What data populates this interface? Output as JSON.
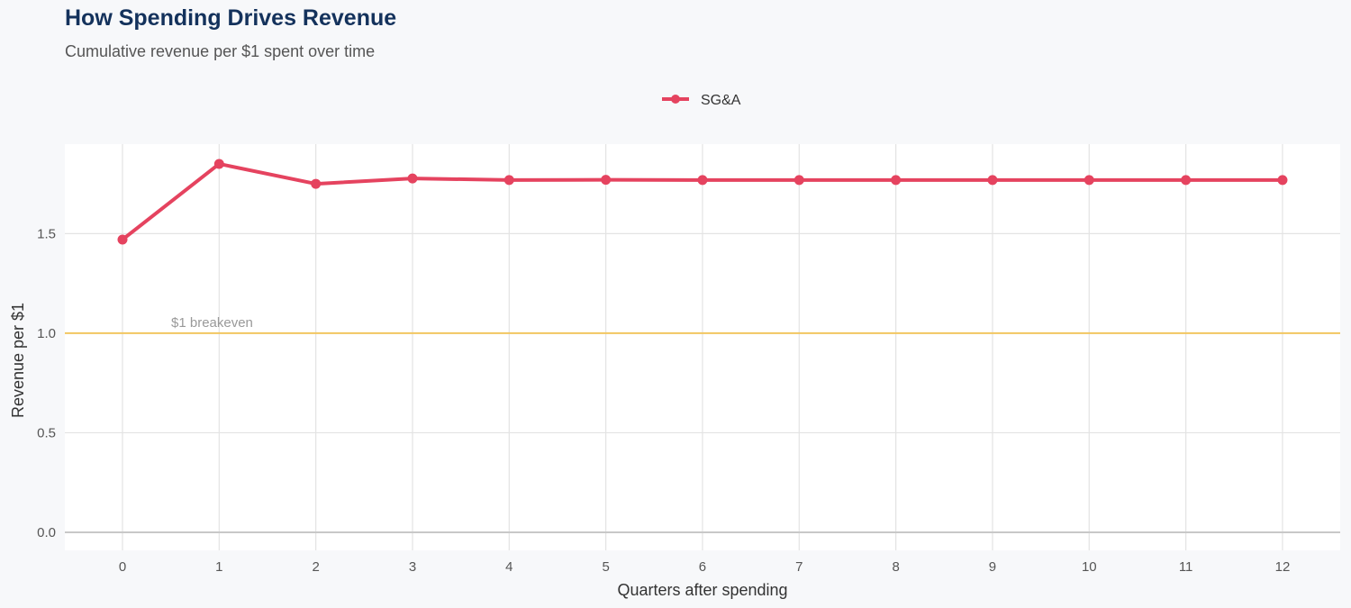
{
  "title": "How Spending Drives Revenue",
  "subtitle": "Cumulative revenue per $1 spent over time",
  "chart_data": {
    "type": "line",
    "title": "How Spending Drives Revenue",
    "subtitle": "Cumulative revenue per $1 spent over time",
    "xlabel": "Quarters after spending",
    "ylabel": "Revenue per $1",
    "x": [
      0,
      1,
      2,
      3,
      4,
      5,
      6,
      7,
      8,
      9,
      10,
      11,
      12
    ],
    "xticks": [
      "0",
      "1",
      "2",
      "3",
      "4",
      "5",
      "6",
      "7",
      "8",
      "9",
      "10",
      "11",
      "12"
    ],
    "yticks": [
      "0.0",
      "0.5",
      "1.0",
      "1.5"
    ],
    "ylim": [
      -0.09,
      1.95
    ],
    "xlim": [
      -0.6,
      12.6
    ],
    "grid": true,
    "legend_position": "top",
    "series": [
      {
        "name": "SG&A",
        "color": "#e5435f",
        "values": [
          1.47,
          1.85,
          1.75,
          1.777,
          1.769,
          1.77,
          1.769,
          1.769,
          1.769,
          1.769,
          1.769,
          1.769,
          1.769
        ]
      }
    ],
    "reference_line": {
      "y": 1.0,
      "label": "$1 breakeven",
      "color": "#f2c660"
    }
  }
}
